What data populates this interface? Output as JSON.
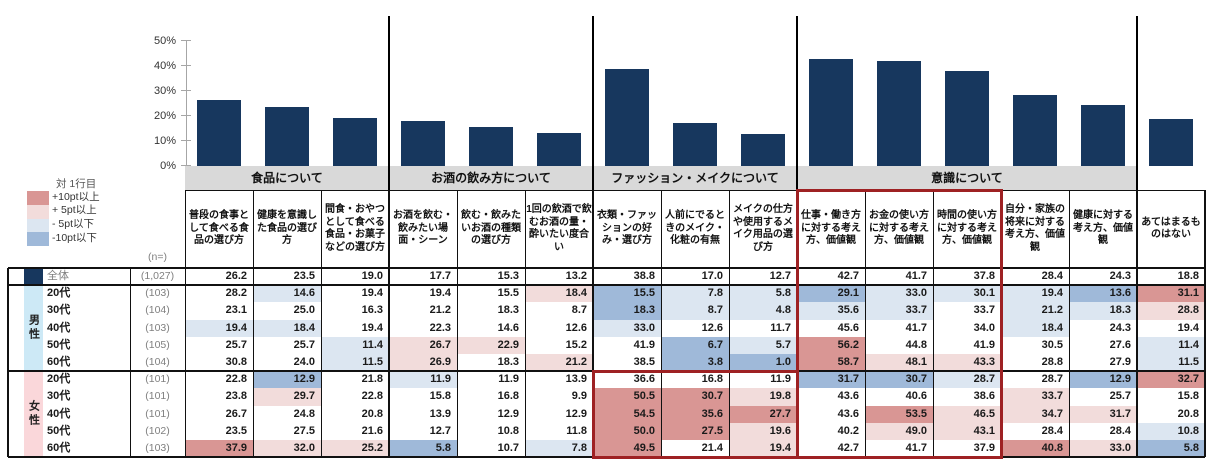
{
  "legend": {
    "title": "対 1行目",
    "items": [
      {
        "label": "+10pt以上",
        "key": "strong_up"
      },
      {
        "label": "+  5pt以上",
        "key": "up"
      },
      {
        "label": "-  5pt以下",
        "key": "down"
      },
      {
        "label": "-10pt以下",
        "key": "strong_down"
      }
    ]
  },
  "chart": {
    "y_tick_labels": [
      "50%",
      "40%",
      "30%",
      "20%",
      "10%",
      "0%"
    ]
  },
  "chart_data": {
    "type": "bar",
    "title": "",
    "xlabel": "",
    "ylabel": "",
    "ylim": [
      0,
      50
    ],
    "y_tick_interval": 10,
    "grid": false,
    "legend_position": "none",
    "categories": [
      "普段の食事として食べる食品の選び方",
      "健康を意識した食品の選び方",
      "間食・おやつとして食べる食品・お菓子などの選び方",
      "お酒を飲む・飲みたい場面・シーン",
      "飲む・飲みたいお酒の種類の選び方",
      "1回の飲酒で飲むお酒の量・酔いたい度合い",
      "衣類・ファッションの好み・選び方",
      "人前にでるときのメイク・化粧の有無",
      "メイクの仕方や使用するメイク用品の選び方",
      "仕事・働き方に対する考え方、価値観",
      "お金の使い方に対する考え方、価値観",
      "時間の使い方に対する考え方、価値観",
      "自分・家族の将来に対する考え方、価値観",
      "健康に対する考え方、価値観",
      "あてはまるものはない"
    ],
    "group_bands": [
      "食品について",
      "お酒の飲み方について",
      "ファッション・メイクについて",
      "意識について"
    ],
    "values": [
      26.2,
      23.5,
      19.0,
      17.7,
      15.3,
      13.2,
      38.8,
      17.0,
      12.7,
      42.7,
      41.7,
      37.8,
      28.4,
      24.3,
      18.8
    ]
  },
  "table": {
    "n_label": "(n=)",
    "groups": [
      {
        "label": "食品について",
        "cols": 3,
        "band": true
      },
      {
        "label": "お酒の飲み方について",
        "cols": 3,
        "band": true
      },
      {
        "label": "ファッション・メイクについて",
        "cols": 3,
        "band": true
      },
      {
        "label": "意識について",
        "cols": 5,
        "band": true
      },
      {
        "label": "",
        "cols": 1,
        "band": false
      }
    ],
    "columns": [
      "普段の食事として食べる食品の選び方",
      "健康を意識した食品の選び方",
      "間食・おやつとして食べる食品・お菓子などの選び方",
      "お酒を飲む・飲みたい場面・シーン",
      "飲む・飲みたいお酒の種類の選び方",
      "1回の飲酒で飲むお酒の量・酔いたい度合い",
      "衣類・ファッションの好み・選び方",
      "人前にでるときのメイク・化粧の有無",
      "メイクの仕方や使用するメイク用品の選び方",
      "仕事・働き方に対する考え方、価値観",
      "お金の使い方に対する考え方、価値観",
      "時間の使い方に対する考え方、価値観",
      "自分・家族の将来に対する考え方、価値観",
      "健康に対する考え方、価値観",
      "あてはまるものはない"
    ],
    "segments": {
      "male": {
        "label": "男性"
      },
      "female": {
        "label": "女性"
      }
    },
    "rows": [
      {
        "segment": "total",
        "label": "全体",
        "n": "(1,027)",
        "values": [
          "26.2",
          "23.5",
          "19.0",
          "17.7",
          "15.3",
          "13.2",
          "38.8",
          "17.0",
          "12.7",
          "42.7",
          "41.7",
          "37.8",
          "28.4",
          "24.3",
          "18.8"
        ]
      },
      {
        "segment": "male",
        "label": "20代",
        "n": "(103)",
        "values": [
          "28.2",
          "14.6",
          "19.4",
          "19.4",
          "15.5",
          "18.4",
          "15.5",
          "7.8",
          "5.8",
          "29.1",
          "33.0",
          "30.1",
          "19.4",
          "13.6",
          "31.1"
        ]
      },
      {
        "segment": "male",
        "label": "30代",
        "n": "(104)",
        "values": [
          "23.1",
          "25.0",
          "16.3",
          "21.2",
          "18.3",
          "8.7",
          "18.3",
          "8.7",
          "4.8",
          "35.6",
          "33.7",
          "33.7",
          "21.2",
          "18.3",
          "28.8"
        ]
      },
      {
        "segment": "male",
        "label": "40代",
        "n": "(103)",
        "values": [
          "19.4",
          "18.4",
          "19.4",
          "22.3",
          "14.6",
          "12.6",
          "33.0",
          "12.6",
          "11.7",
          "45.6",
          "41.7",
          "34.0",
          "18.4",
          "24.3",
          "19.4"
        ]
      },
      {
        "segment": "male",
        "label": "50代",
        "n": "(105)",
        "values": [
          "25.7",
          "25.7",
          "11.4",
          "26.7",
          "22.9",
          "15.2",
          "41.9",
          "6.7",
          "5.7",
          "56.2",
          "44.8",
          "41.9",
          "30.5",
          "27.6",
          "11.4"
        ]
      },
      {
        "segment": "male",
        "label": "60代",
        "n": "(104)",
        "values": [
          "30.8",
          "24.0",
          "11.5",
          "26.9",
          "18.3",
          "21.2",
          "38.5",
          "3.8",
          "1.0",
          "58.7",
          "48.1",
          "43.3",
          "28.8",
          "27.9",
          "11.5"
        ]
      },
      {
        "segment": "female",
        "label": "20代",
        "n": "(101)",
        "values": [
          "22.8",
          "12.9",
          "21.8",
          "11.9",
          "11.9",
          "13.9",
          "36.6",
          "16.8",
          "11.9",
          "31.7",
          "30.7",
          "28.7",
          "28.7",
          "12.9",
          "32.7"
        ]
      },
      {
        "segment": "female",
        "label": "30代",
        "n": "(101)",
        "values": [
          "23.8",
          "29.7",
          "22.8",
          "15.8",
          "16.8",
          "9.9",
          "50.5",
          "30.7",
          "19.8",
          "43.6",
          "40.6",
          "38.6",
          "33.7",
          "25.7",
          "15.8"
        ]
      },
      {
        "segment": "female",
        "label": "40代",
        "n": "(101)",
        "values": [
          "26.7",
          "24.8",
          "20.8",
          "13.9",
          "12.9",
          "12.9",
          "54.5",
          "35.6",
          "27.7",
          "43.6",
          "53.5",
          "46.5",
          "34.7",
          "31.7",
          "20.8"
        ]
      },
      {
        "segment": "female",
        "label": "50代",
        "n": "(102)",
        "values": [
          "23.5",
          "27.5",
          "21.6",
          "12.7",
          "10.8",
          "11.8",
          "50.0",
          "27.5",
          "19.6",
          "40.2",
          "49.0",
          "43.1",
          "28.4",
          "28.4",
          "10.8"
        ]
      },
      {
        "segment": "female",
        "label": "60代",
        "n": "(103)",
        "values": [
          "37.9",
          "32.0",
          "25.2",
          "5.8",
          "10.7",
          "7.8",
          "49.5",
          "21.4",
          "19.4",
          "42.7",
          "41.7",
          "37.9",
          "40.8",
          "33.0",
          "5.8"
        ]
      }
    ],
    "diff_rule": {
      "strong_up": ">=+10pt",
      "up": ">=+5pt",
      "down": "<=-5pt",
      "strong_down": "<=-10pt",
      "reference": "row 1 (全体)"
    }
  },
  "highlights": [
    {
      "name": "highlight-box-fashion-female",
      "col_start": 6,
      "col_end": 9,
      "from_header": false,
      "row_start": 6,
      "row_end": 11
    },
    {
      "name": "highlight-box-work-money-time",
      "col_start": 9,
      "col_end": 12,
      "from_header": true,
      "row_start": 0,
      "row_end": 11
    }
  ],
  "colors": {
    "bar": "#17375E",
    "band_gray": "#D9D9D9",
    "strong_up": "#D99694",
    "up": "#F2DCDB",
    "down": "#DCE6F1",
    "strong_down": "#9FB9D9",
    "male_band": "#CDE9F6",
    "female_band": "#FAD7DA",
    "total_swatch": "#17375E",
    "highlight_border": "#9E2123",
    "gray_text": "#7F7F7F",
    "axis_line": "#A6A6A6",
    "grid_black": "#111111"
  }
}
